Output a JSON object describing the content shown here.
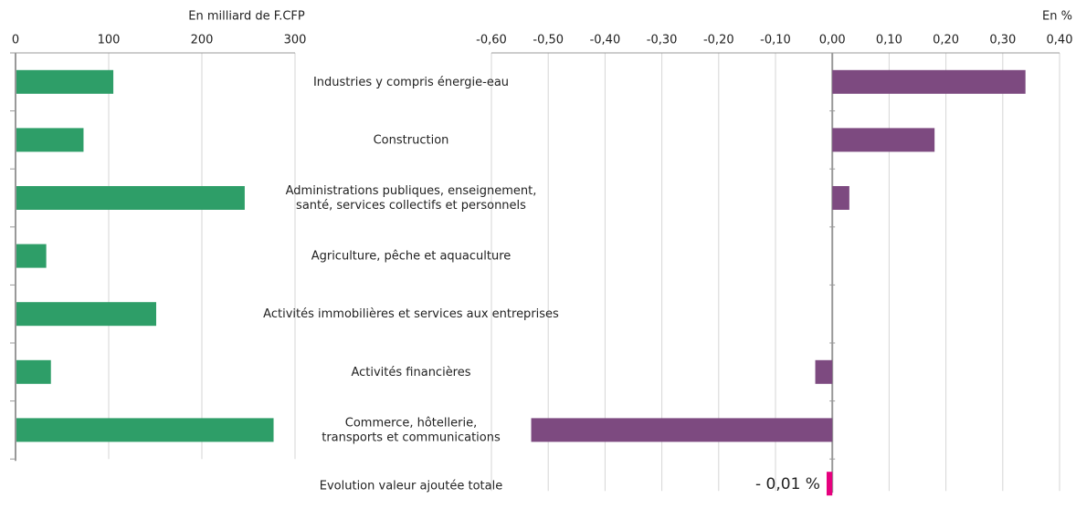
{
  "chart_data": [
    {
      "type": "bar",
      "orientation": "horizontal",
      "axis_label": "En milliard de F.CFP",
      "categories": [
        "Industries y compris énergie-eau",
        "Construction",
        "Administrations publiques, enseignement,\nsanté, services collectifs et personnels",
        "Agriculture, pêche et aquaculture",
        "Activités immobilières et services aux entreprises",
        "Activités financières",
        "Commerce, hôtellerie,\ntransports et communications"
      ],
      "values": [
        104,
        72,
        245,
        32,
        150,
        37,
        276
      ],
      "color": "#2e9e68",
      "xlim": [
        0,
        300
      ],
      "xticks": [
        0,
        100,
        200,
        300
      ],
      "grid": true
    },
    {
      "type": "bar",
      "orientation": "horizontal",
      "axis_label": "En %",
      "values": [
        0.34,
        0.18,
        0.03,
        0,
        0,
        -0.03,
        -0.53
      ],
      "color": "#7d4a80",
      "xlim": [
        -0.6,
        0.4
      ],
      "xticks": [
        {
          "value": -0.6,
          "label": "-0,60"
        },
        {
          "value": -0.5,
          "label": "-0,50"
        },
        {
          "value": -0.4,
          "label": "-0,40"
        },
        {
          "value": -0.3,
          "label": "-0,30"
        },
        {
          "value": -0.2,
          "label": "-0,20"
        },
        {
          "value": -0.1,
          "label": "-0,10"
        },
        {
          "value": 0,
          "label": "0,00"
        },
        {
          "value": 0.1,
          "label": "0,10"
        },
        {
          "value": 0.2,
          "label": "0,20"
        },
        {
          "value": 0.3,
          "label": "0,30"
        },
        {
          "value": 0.4,
          "label": "0,40"
        }
      ],
      "grid": true,
      "total": {
        "label": "Evolution valeur ajoutée totale",
        "value": -0.01,
        "value_label": "- 0,01 %",
        "color": "#e6007e"
      }
    }
  ]
}
